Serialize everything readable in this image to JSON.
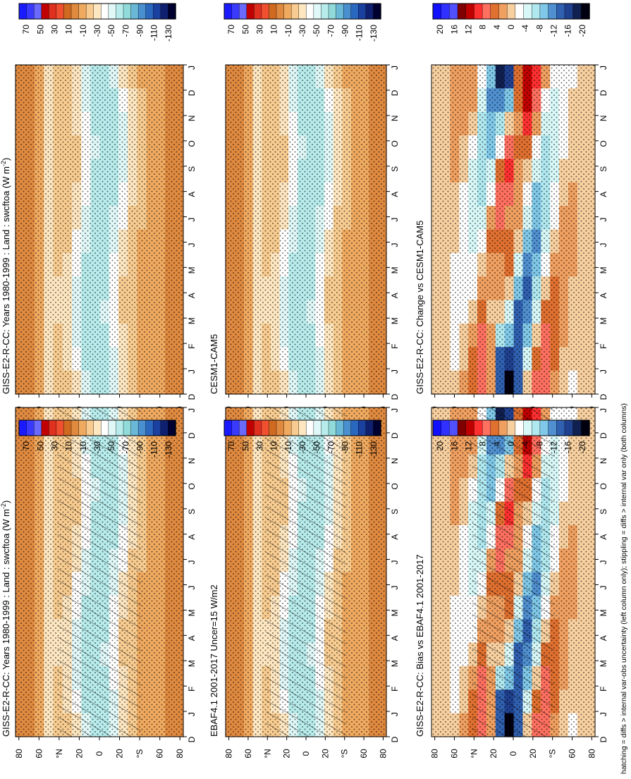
{
  "footnote": "hatching = diffs > internal var-obs uncertainty (left column only); stippling = diffs > internal var only (both columns)",
  "month_labels": [
    "D",
    "J",
    "F",
    "M",
    "A",
    "M",
    "J",
    "J",
    "A",
    "S",
    "O",
    "N",
    "D",
    "J"
  ],
  "lat_labels": [
    "80",
    "60",
    "°N",
    "20",
    "0",
    "20",
    "°S",
    "60",
    "80"
  ],
  "colorbars": {
    "absolute": {
      "labels": [
        "70",
        "50",
        "30",
        "10",
        "-10",
        "-30",
        "-50",
        "-70",
        "-90",
        "-110",
        "-130"
      ],
      "colors": [
        "#1a1aff",
        "#3a3aff",
        "#6a6aff",
        "#c00000",
        "#e03020",
        "#f05030",
        "#d06a20",
        "#e08a40",
        "#f0aa60",
        "#f8cc90",
        "#fde6c0",
        "#ffffff",
        "#e0f8f8",
        "#b8ecec",
        "#90dada",
        "#6ab8d8",
        "#4a90d0",
        "#2a68c0",
        "#1a40a0",
        "#102070",
        "#000030"
      ]
    },
    "difference": {
      "labels": [
        "20",
        "16",
        "12",
        "8",
        "4",
        "0",
        "-4",
        "-8",
        "-12",
        "-16",
        "-20"
      ],
      "colors": [
        "#1010ff",
        "#3030ff",
        "#5050ff",
        "#800000",
        "#c00000",
        "#ff3030",
        "#ff7060",
        "#e07030",
        "#f0a060",
        "#f8d0a0",
        "#ffffff",
        "#d8f8f8",
        "#b0e8f0",
        "#80c8e8",
        "#5090d0",
        "#3060b0",
        "#204090",
        "#102050",
        "#000010"
      ]
    }
  },
  "chart_data": [
    {
      "type": "heatmap",
      "title": "GISS-E2-R-CC: Years 1980-1999 : Land : swcftoa (W m",
      "title_superscript": "-2",
      "title_suffix": ")",
      "x": "month (D..J)",
      "y": "latitude 90S..90N",
      "hatching": true,
      "stippling": true,
      "colorbar": "absolute"
    },
    {
      "type": "heatmap",
      "title": "GISS-E2-R-CC: Years 1980-1999 : Land : swcftoa (W m",
      "title_superscript": "-2",
      "title_suffix": ")",
      "x": "month (D..J)",
      "y": "latitude 90S..90N",
      "hatching": false,
      "stippling": true,
      "colorbar": "absolute"
    },
    {
      "type": "heatmap",
      "title": "EBAF4.1 2001-2017 Uncer=15 W/m2",
      "x": "month (D..J)",
      "y": "latitude 90S..90N",
      "hatching": true,
      "stippling": true,
      "colorbar": "absolute"
    },
    {
      "type": "heatmap",
      "title": "CESM1-CAM5",
      "x": "month (D..J)",
      "y": "latitude 90S..90N",
      "hatching": false,
      "stippling": true,
      "colorbar": "absolute"
    },
    {
      "type": "heatmap",
      "title": "GISS-E2-R-CC: Bias vs EBAF4.1 2001-2017",
      "x": "month (D..J)",
      "y": "latitude 90S..90N",
      "hatching": true,
      "stippling": true,
      "colorbar": "difference"
    },
    {
      "type": "heatmap",
      "title": "GISS-E2-R-CC: Change vs CESM1-CAM5",
      "x": "month (D..J)",
      "y": "latitude 90S..90N",
      "hatching": false,
      "stippling": true,
      "colorbar": "difference"
    }
  ]
}
